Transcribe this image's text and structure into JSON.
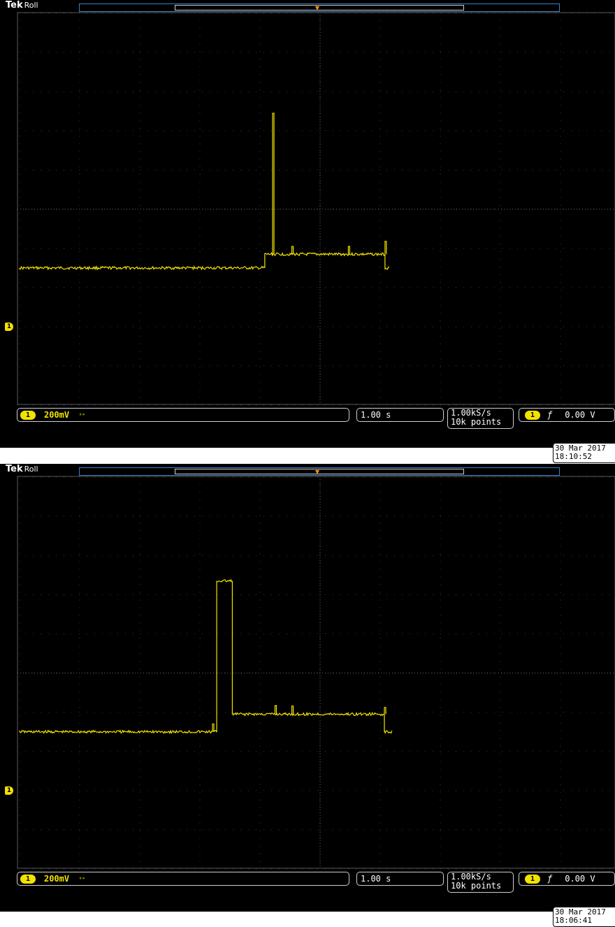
{
  "screens": [
    {
      "brand": "Tek",
      "mode": "Roll",
      "trigger_marker": "T",
      "channel": "1",
      "vertical_scale": "200mV",
      "bandwidth_icon": "BW",
      "horizontal_scale": "1.00 s",
      "sample_rate": "1.00kS/s",
      "record_length": "10k points",
      "trigger_source": "1",
      "trigger_slope": "rising-edge",
      "trigger_level": "0.00 V",
      "date": "30 Mar 2017",
      "time": "18:10:52",
      "trace_color": "#f1e200",
      "waveform": {
        "baseline_div": -1.5,
        "segments": [
          {
            "from_div": -5.0,
            "to_div": -0.92,
            "level_div": -1.5
          },
          {
            "from_div": -0.92,
            "to_div": 1.08,
            "level_div": -1.15
          },
          {
            "from_div": 1.08,
            "to_div": 1.16,
            "level_div": -1.5
          }
        ],
        "spikes": [
          {
            "at_div": -0.79,
            "peak_div": 2.45
          },
          {
            "at_div": -0.47,
            "peak_div": -0.95
          },
          {
            "at_div": 0.47,
            "peak_div": -0.95
          },
          {
            "at_div": 1.08,
            "peak_div": -0.82
          }
        ]
      }
    },
    {
      "brand": "Tek",
      "mode": "Roll",
      "trigger_marker": "T",
      "channel": "1",
      "vertical_scale": "200mV",
      "bandwidth_icon": "BW",
      "horizontal_scale": "1.00 s",
      "sample_rate": "1.00kS/s",
      "record_length": "10k points",
      "trigger_source": "1",
      "trigger_slope": "rising-edge",
      "trigger_level": "0.00 V",
      "date": "30 Mar 2017",
      "time": "18:06:41",
      "trace_color": "#f1e200",
      "waveform": {
        "baseline_div": -1.5,
        "segments": [
          {
            "from_div": -5.0,
            "to_div": -1.72,
            "level_div": -1.5
          },
          {
            "from_div": -1.72,
            "to_div": -1.46,
            "level_div": 2.35
          },
          {
            "from_div": -1.46,
            "to_div": 1.07,
            "level_div": -1.05
          },
          {
            "from_div": 1.07,
            "to_div": 1.2,
            "level_div": -1.5
          }
        ],
        "spikes": [
          {
            "at_div": -1.79,
            "peak_div": -1.3
          },
          {
            "at_div": -0.75,
            "peak_div": -0.83
          },
          {
            "at_div": -0.47,
            "peak_div": -0.84
          },
          {
            "at_div": 1.07,
            "peak_div": -0.88
          }
        ]
      }
    }
  ]
}
